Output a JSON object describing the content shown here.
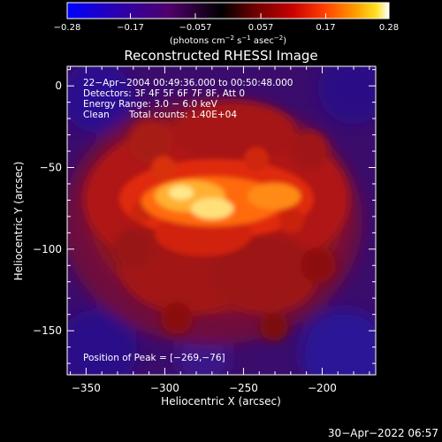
{
  "chart_data": {
    "type": "heatmap",
    "title": "Reconstructed RHESSI Image",
    "xlabel": "Heliocentric X (arcsec)",
    "ylabel": "Heliocentric Y (arcsec)",
    "xlim": [
      -362,
      -166
    ],
    "ylim": [
      -177,
      12
    ],
    "x_ticks": [
      -350,
      -300,
      -250,
      -200
    ],
    "x_tick_labels": [
      "−350",
      "−300",
      "−250",
      "−200"
    ],
    "y_ticks": [
      0,
      -50,
      -100,
      -150
    ],
    "y_tick_labels": [
      "0",
      "−50",
      "−100",
      "−150"
    ],
    "colorbar": {
      "range": [
        -0.28,
        0.28
      ],
      "ticks": [
        -0.28,
        -0.17,
        -0.057,
        0.057,
        0.17,
        0.28
      ],
      "tick_labels": [
        "−0.28",
        "−0.17",
        "−0.057",
        "0.057",
        "0.17",
        "0.28"
      ],
      "units_main": "(photons cm",
      "units_exp1": "−2",
      "units_mid": " s",
      "units_exp2": "−1",
      "units_end": " asec",
      "units_exp3": "−2",
      "units_close": ")",
      "colors": [
        "#0000ff",
        "#2a00b0",
        "#50006a",
        "#000000",
        "#6a0000",
        "#c80000",
        "#ff4000",
        "#ffa000",
        "#ffe020",
        "#ffffff"
      ]
    },
    "annotations": [
      "22−Apr−2004 00:49:36.000 to 00:50:48.000",
      "Detectors: 3F 4F 5F 6F 7F 8F, Att 0",
      "Energy Range: 3.0 − 6.0 keV"
    ],
    "clean_label": "Clean",
    "total_counts_label": "Total counts: 1.40E+04",
    "peak_label": "Position of Peak = [−269,−76]",
    "peak": [
      -269,
      -76
    ]
  },
  "timestamp": "30−Apr−2022 06:57"
}
